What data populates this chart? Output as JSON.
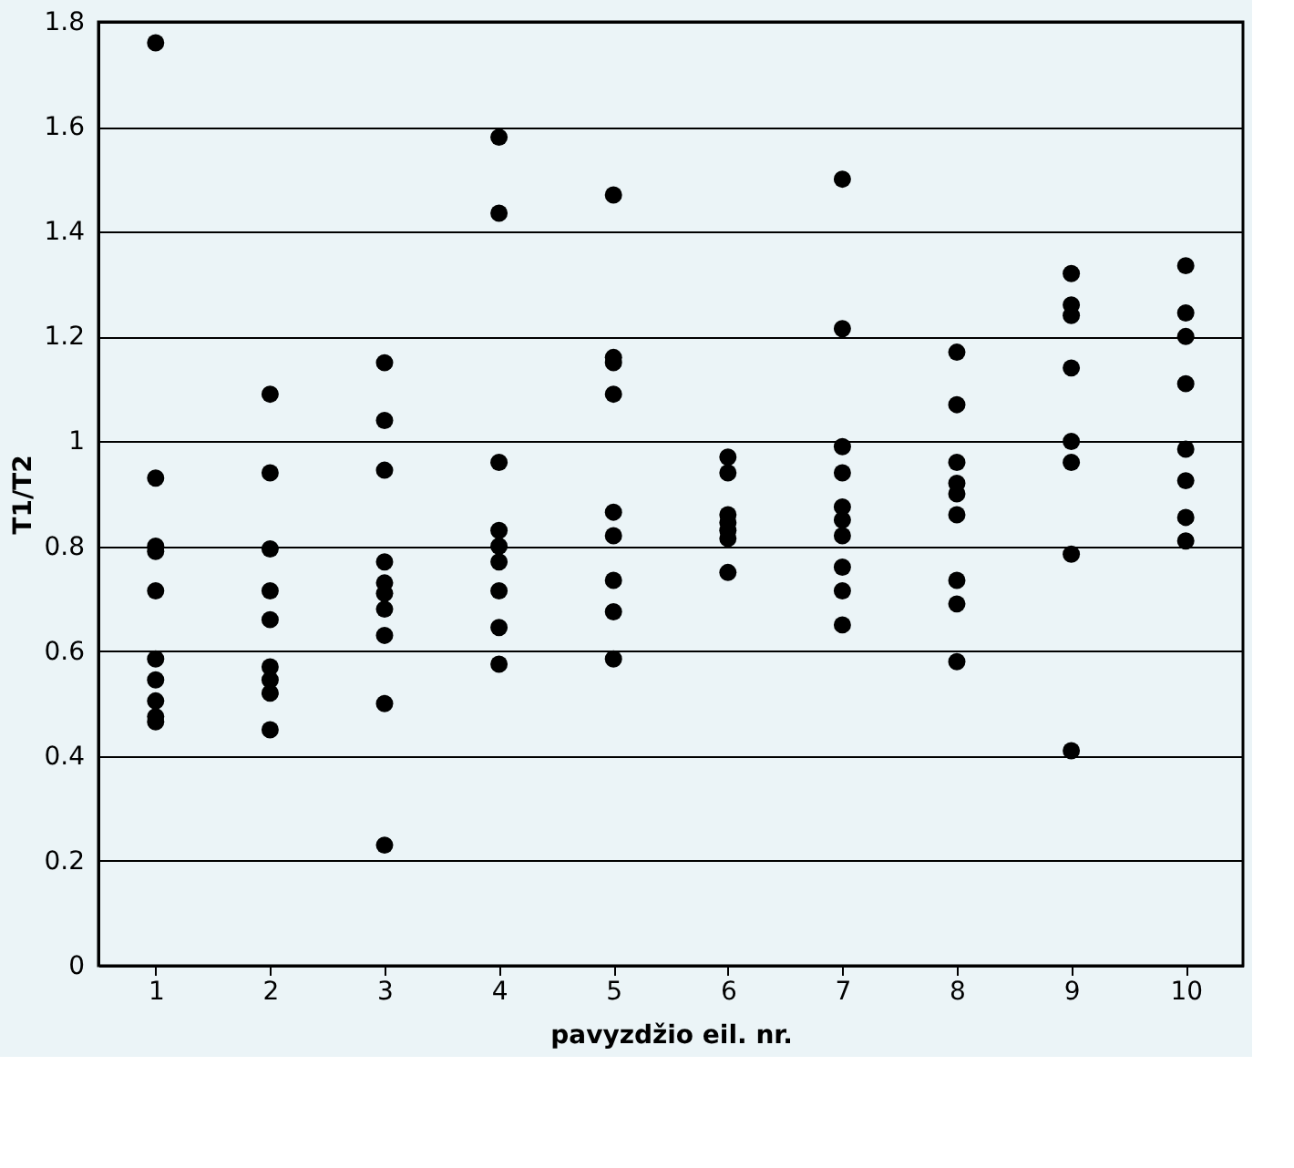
{
  "chart_data": {
    "type": "scatter",
    "xlabel": "pavyzdžio eil. nr.",
    "ylabel": "T1/T2",
    "categories": [
      "1",
      "2",
      "3",
      "4",
      "5",
      "6",
      "7",
      "8",
      "9",
      "10"
    ],
    "ylim": [
      0,
      1.8
    ],
    "yticks": [
      0,
      0.2,
      0.4,
      0.6,
      0.8,
      1,
      1.2,
      1.4,
      1.6,
      1.8
    ],
    "grid": "y",
    "marker": "circle",
    "series": [
      {
        "color": "#000000",
        "x": [
          "1",
          "1",
          "1",
          "1",
          "1",
          "1",
          "1",
          "1",
          "1",
          "1",
          "2",
          "2",
          "2",
          "2",
          "2",
          "2",
          "2",
          "2",
          "2",
          "3",
          "3",
          "3",
          "3",
          "3",
          "3",
          "3",
          "3",
          "3",
          "3",
          "4",
          "4",
          "4",
          "4",
          "4",
          "4",
          "4",
          "4",
          "4",
          "5",
          "5",
          "5",
          "5",
          "5",
          "5",
          "5",
          "5",
          "5",
          "6",
          "6",
          "6",
          "6",
          "6",
          "6",
          "6",
          "7",
          "7",
          "7",
          "7",
          "7",
          "7",
          "7",
          "7",
          "7",
          "7",
          "8",
          "8",
          "8",
          "8",
          "8",
          "8",
          "8",
          "8",
          "8",
          "9",
          "9",
          "9",
          "9",
          "9",
          "9",
          "9",
          "9",
          "10",
          "10",
          "10",
          "10",
          "10",
          "10",
          "10",
          "10"
        ],
        "values": [
          1.76,
          0.93,
          0.8,
          0.79,
          0.715,
          0.585,
          0.545,
          0.505,
          0.475,
          0.465,
          1.09,
          0.94,
          0.795,
          0.715,
          0.66,
          0.57,
          0.545,
          0.52,
          0.45,
          1.15,
          1.04,
          0.945,
          0.77,
          0.73,
          0.71,
          0.68,
          0.63,
          0.5,
          0.23,
          1.58,
          1.435,
          0.96,
          0.83,
          0.8,
          0.77,
          0.715,
          0.645,
          0.575,
          1.47,
          1.16,
          1.15,
          1.09,
          0.865,
          0.82,
          0.735,
          0.675,
          0.585,
          0.97,
          0.94,
          0.86,
          0.845,
          0.83,
          0.815,
          0.75,
          1.5,
          1.215,
          0.99,
          0.94,
          0.875,
          0.85,
          0.82,
          0.76,
          0.715,
          0.65,
          1.17,
          1.07,
          0.96,
          0.92,
          0.9,
          0.86,
          0.735,
          0.69,
          0.58,
          1.32,
          1.26,
          1.24,
          1.14,
          1.0,
          0.96,
          0.785,
          0.41,
          1.335,
          1.245,
          1.2,
          1.11,
          0.985,
          0.925,
          0.855,
          0.81
        ]
      }
    ]
  }
}
